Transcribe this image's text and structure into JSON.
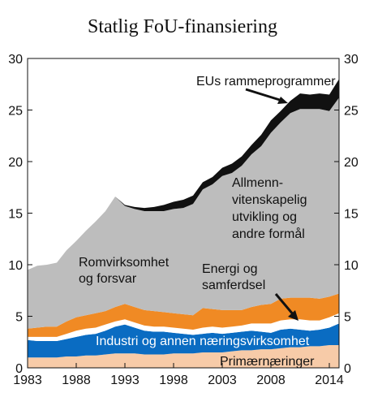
{
  "chart_data": {
    "type": "area",
    "title": "Statlig FoU-finansiering",
    "stacked": true,
    "x": [
      1983,
      1984,
      1985,
      1986,
      1987,
      1988,
      1989,
      1990,
      1991,
      1992,
      1993,
      1994,
      1995,
      1996,
      1997,
      1998,
      1999,
      2000,
      2001,
      2002,
      2003,
      2004,
      2005,
      2006,
      2007,
      2008,
      2009,
      2010,
      2011,
      2012,
      2013,
      2014,
      2015
    ],
    "xticks": [
      "1983",
      "1988",
      "1993",
      "1998",
      "2003",
      "2008",
      "2014"
    ],
    "xtick_values": [
      1983,
      1988,
      1993,
      1998,
      2003,
      2008,
      2014
    ],
    "yticks": [
      "0",
      "5",
      "10",
      "15",
      "20",
      "25",
      "30"
    ],
    "ylim": [
      0,
      30
    ],
    "xlim": [
      1983,
      2015
    ],
    "grid": false,
    "series": [
      {
        "name": "Primærnæringer",
        "color": "#f7cba8",
        "values": [
          1.0,
          1.0,
          1.0,
          1.0,
          1.1,
          1.1,
          1.2,
          1.2,
          1.3,
          1.4,
          1.4,
          1.4,
          1.3,
          1.3,
          1.3,
          1.4,
          1.4,
          1.4,
          1.5,
          1.5,
          1.5,
          1.6,
          1.7,
          1.7,
          1.8,
          1.8,
          1.9,
          2.0,
          2.0,
          2.1,
          2.1,
          2.2,
          2.2
        ]
      },
      {
        "name": "Industri og annen næringsvirksomhet",
        "color": "#0a6cc2",
        "values": [
          1.7,
          1.6,
          1.6,
          1.6,
          1.7,
          1.9,
          2.0,
          2.1,
          2.3,
          2.6,
          2.8,
          2.5,
          2.3,
          2.2,
          2.2,
          2.0,
          1.9,
          1.8,
          1.8,
          1.9,
          1.8,
          1.8,
          1.8,
          1.9,
          1.7,
          1.6,
          1.8,
          1.8,
          1.7,
          1.5,
          1.6,
          1.7,
          2.1
        ]
      },
      {
        "name": "Energi og samferdsel",
        "color": "#ffffff",
        "values": [
          0.3,
          0.4,
          0.4,
          0.4,
          0.5,
          0.6,
          0.6,
          0.6,
          0.6,
          0.5,
          0.5,
          0.5,
          0.5,
          0.5,
          0.5,
          0.5,
          0.5,
          0.5,
          0.6,
          0.6,
          0.6,
          0.6,
          0.6,
          0.7,
          0.8,
          0.9,
          0.9,
          0.9,
          1.0,
          1.0,
          0.9,
          1.0,
          1.0
        ]
      },
      {
        "name": "Romvirksomhet og forsvar",
        "color": "#f08a24",
        "values": [
          0.8,
          0.9,
          1.0,
          1.0,
          1.2,
          1.3,
          1.3,
          1.4,
          1.3,
          1.4,
          1.5,
          1.5,
          1.5,
          1.5,
          1.4,
          1.4,
          1.4,
          1.4,
          1.9,
          1.7,
          1.7,
          1.6,
          1.5,
          1.6,
          1.8,
          1.9,
          2.1,
          2.1,
          2.1,
          2.2,
          2.1,
          2.0,
          1.9
        ]
      },
      {
        "name": "Allmennvitenskapelig utvikling og andre formål",
        "color": "#bdbdbd",
        "values": [
          5.7,
          6.0,
          6.0,
          6.2,
          6.9,
          7.4,
          8.2,
          8.9,
          9.7,
          10.7,
          9.5,
          9.5,
          9.6,
          9.7,
          9.8,
          10.1,
          10.3,
          10.8,
          11.5,
          12.1,
          13.0,
          13.3,
          14.0,
          14.8,
          15.4,
          16.6,
          17.1,
          17.9,
          18.3,
          18.3,
          18.4,
          18.0,
          19.0
        ]
      },
      {
        "name": "EUs rammeprogrammer",
        "color": "#111111",
        "values": [
          0.0,
          0.0,
          0.0,
          0.0,
          0.0,
          0.0,
          0.0,
          0.0,
          0.0,
          0.0,
          0.1,
          0.2,
          0.3,
          0.4,
          0.6,
          0.7,
          0.8,
          0.8,
          0.7,
          0.7,
          0.8,
          0.9,
          0.9,
          0.9,
          1.1,
          1.2,
          1.1,
          1.2,
          1.5,
          1.4,
          1.5,
          1.6,
          1.8
        ]
      }
    ],
    "annotations": {
      "eu": "EUs rammeprogrammer",
      "allmenn": [
        "Allmenn-",
        "vitenskapelig",
        "utvikling og",
        "andre formål"
      ],
      "rom": [
        "Romvirksomhet",
        "og forsvar"
      ],
      "energi": [
        "Energi og",
        "samferdsel"
      ],
      "industri": "Industri og annen næringsvirksomhet",
      "primaer": "Primærnæringer"
    }
  }
}
